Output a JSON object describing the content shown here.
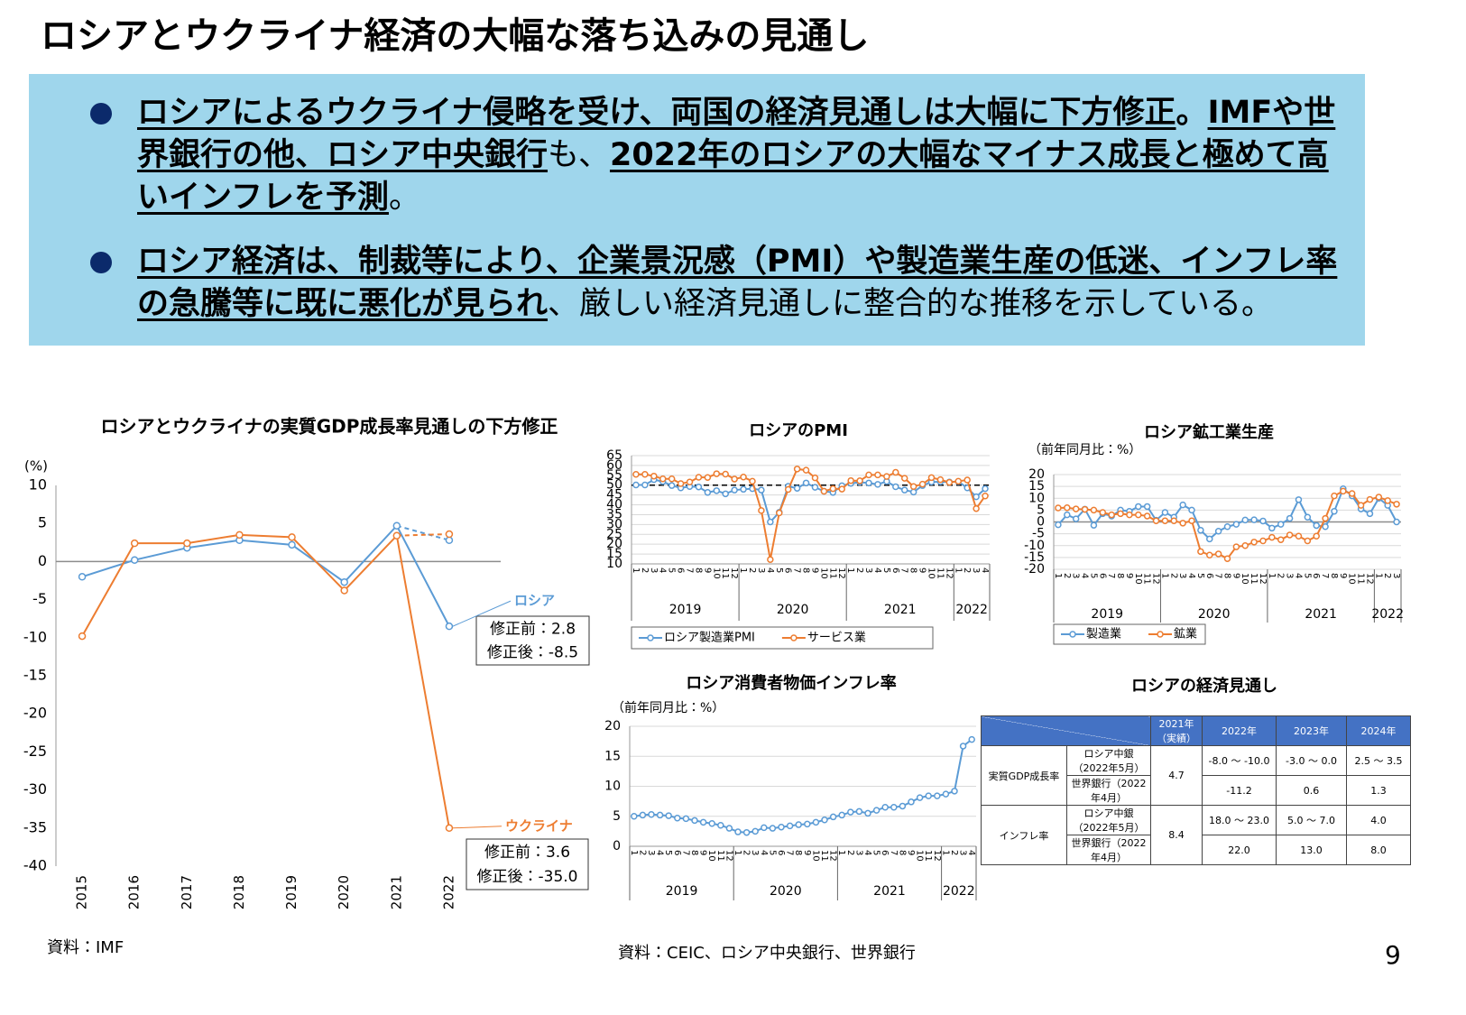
{
  "title": "ロシアとウクライナ経済の大幅な落ち込みの見通し",
  "bullets": [
    {
      "segments": [
        {
          "text": "ロシアによるウクライナ侵略を受け、両国の経済見通しは大幅に下方修正",
          "style": "underline"
        },
        {
          "text": "。",
          "style": "bold"
        },
        {
          "text": "IMFや世界銀行の他、ロシア中央銀行",
          "style": "underline"
        },
        {
          "text": "も、",
          "style": "normal"
        },
        {
          "text": "2022年のロシアの大幅なマイナス成長と極めて高いインフレを予測",
          "style": "underline"
        },
        {
          "text": "。",
          "style": "normal"
        }
      ]
    },
    {
      "segments": [
        {
          "text": "ロシア経済は、制裁等により、企業景況感（PMI）や製造業生産の低迷、インフレ率の急騰等に既に悪化が見られ",
          "style": "underline"
        },
        {
          "text": "、厳しい経済見通しに整合的な推移を示している。",
          "style": "normal"
        }
      ]
    }
  ],
  "chart_data": [
    {
      "type": "line",
      "title": "ロシアとウクライナの実質GDP成長率見通しの下方修正",
      "y_unit": "(%)",
      "categories": [
        "2015",
        "2016",
        "2017",
        "2018",
        "2019",
        "2020",
        "2021",
        "2022"
      ],
      "series": [
        {
          "name": "ロシア",
          "color": "#5b9bd5",
          "values": [
            -2.0,
            0.2,
            1.8,
            2.8,
            2.2,
            -2.7,
            4.7,
            -8.5
          ],
          "revision": {
            "before": 2.8,
            "before_label": "修正前：2.8",
            "after_label": "修正後：-8.5"
          }
        },
        {
          "name": "ウクライナ",
          "color": "#ed7d31",
          "values": [
            -9.8,
            2.4,
            2.4,
            3.5,
            3.2,
            -3.8,
            3.4,
            -35.0
          ],
          "revision": {
            "before": 3.6,
            "before_label": "修正前：3.6",
            "after_label": "修正後：-35.0"
          }
        }
      ],
      "ylim": [
        -40,
        10
      ],
      "yticks": [
        -40,
        -35,
        -30,
        -25,
        -20,
        -15,
        -10,
        -5,
        0,
        5,
        10
      ],
      "grid": false,
      "legend": "inline"
    },
    {
      "type": "line",
      "title": "ロシアのPMI",
      "categories": [
        "1",
        "2",
        "3",
        "4",
        "5",
        "6",
        "7",
        "8",
        "9",
        "10",
        "11",
        "12",
        "1",
        "2",
        "3",
        "4",
        "5",
        "6",
        "7",
        "8",
        "9",
        "10",
        "11",
        "12",
        "1",
        "2",
        "3",
        "4",
        "5",
        "6",
        "7",
        "8",
        "9",
        "10",
        "11",
        "12",
        "1",
        "2",
        "3",
        "4"
      ],
      "groups": [
        "2019",
        "2020",
        "2021",
        "2022"
      ],
      "series": [
        {
          "name": "ロシア製造業PMI",
          "color": "#5b9bd5",
          "values": [
            50.1,
            50.1,
            52.8,
            51.8,
            49.8,
            48.6,
            49.3,
            49.1,
            46.3,
            47.2,
            45.6,
            47.5,
            47.9,
            48.2,
            47.5,
            31.3,
            36.2,
            49.4,
            48.4,
            51.1,
            48.9,
            46.9,
            46.3,
            49.7,
            50.9,
            51.5,
            51.1,
            50.4,
            51.9,
            49.2,
            47.5,
            46.5,
            49.8,
            51.6,
            51.7,
            51.6,
            51.8,
            48.6,
            44.1,
            48.2
          ]
        },
        {
          "name": "サービス業",
          "color": "#ed7d31",
          "values": [
            55.5,
            55.5,
            54.6,
            53.2,
            53.2,
            50.8,
            51.6,
            54.0,
            53.9,
            55.8,
            55.6,
            53.1,
            54.1,
            52.0,
            37.1,
            12.2,
            35.9,
            47.8,
            58.2,
            57.6,
            53.7,
            46.9,
            48.2,
            48.0,
            52.3,
            52.2,
            55.2,
            55.2,
            54.4,
            56.5,
            53.5,
            49.3,
            50.5,
            53.8,
            52.8,
            51.4,
            52.0,
            52.6,
            38.1,
            44.5
          ]
        }
      ],
      "reference_line": 50,
      "ylim": [
        10,
        65
      ],
      "yticks": [
        10,
        15,
        20,
        25,
        30,
        35,
        40,
        45,
        50,
        55,
        60,
        65
      ],
      "grid": true,
      "legend": "bottom"
    },
    {
      "type": "line",
      "title": "ロシア鉱工業生産",
      "subtitle": "（前年同月比：%）",
      "categories": [
        "1",
        "2",
        "3",
        "4",
        "5",
        "6",
        "7",
        "8",
        "9",
        "10",
        "11",
        "12",
        "1",
        "2",
        "3",
        "4",
        "5",
        "6",
        "7",
        "8",
        "9",
        "10",
        "11",
        "12",
        "1",
        "2",
        "3",
        "4",
        "5",
        "6",
        "7",
        "8",
        "9",
        "10",
        "11",
        "12",
        "1",
        "2",
        "3"
      ],
      "groups": [
        "2019",
        "2020",
        "2021",
        "2022"
      ],
      "series": [
        {
          "name": "製造業",
          "color": "#5b9bd5",
          "values": [
            -1.2,
            3.0,
            1.3,
            5.4,
            -1.4,
            3.5,
            2.5,
            5.0,
            4.5,
            6.5,
            6.5,
            0.7,
            4.0,
            2.0,
            7.2,
            5.0,
            -3.5,
            -7.2,
            -3.9,
            -2.0,
            -1.0,
            0.8,
            0.9,
            0.4,
            -2.6,
            -1.0,
            1.5,
            9.4,
            2.0,
            -1.5,
            -2.0,
            4.5,
            14.0,
            11.0,
            5.5,
            3.5,
            10.0,
            7.0,
            0.0
          ]
        },
        {
          "name": "鉱業",
          "color": "#ed7d31",
          "values": [
            5.9,
            6.0,
            5.5,
            5.3,
            5.0,
            4.0,
            3.0,
            3.5,
            3.0,
            3.0,
            2.5,
            0.5,
            0.5,
            0.5,
            -0.5,
            0.5,
            -12.5,
            -14.0,
            -13.5,
            -15.5,
            -10.5,
            -10.0,
            -8.5,
            -8.0,
            -6.5,
            -7.5,
            -5.5,
            -6.0,
            -8.0,
            -6.0,
            1.5,
            11.0,
            13.0,
            12.0,
            7.0,
            9.5,
            10.5,
            9.0,
            7.5
          ]
        }
      ],
      "ylim": [
        -20,
        20
      ],
      "yticks": [
        -20,
        -15,
        -10,
        -5,
        0,
        5,
        10,
        15,
        20
      ],
      "grid": true,
      "legend": "bottom"
    },
    {
      "type": "line",
      "title": "ロシア消費者物価インフレ率",
      "subtitle": "（前年同月比：%）",
      "categories": [
        "1",
        "2",
        "3",
        "4",
        "5",
        "6",
        "7",
        "8",
        "9",
        "10",
        "11",
        "12",
        "1",
        "2",
        "3",
        "4",
        "5",
        "6",
        "7",
        "8",
        "9",
        "10",
        "11",
        "12",
        "1",
        "2",
        "3",
        "4",
        "5",
        "6",
        "7",
        "8",
        "9",
        "10",
        "11",
        "12",
        "1",
        "2",
        "3",
        "4"
      ],
      "groups": [
        "2019",
        "2020",
        "2021",
        "2022"
      ],
      "color": "#5b9bd5",
      "values": [
        5.0,
        5.2,
        5.3,
        5.2,
        5.1,
        4.7,
        4.6,
        4.3,
        4.0,
        3.8,
        3.5,
        3.0,
        2.4,
        2.3,
        2.5,
        3.1,
        3.0,
        3.2,
        3.4,
        3.6,
        3.7,
        4.0,
        4.4,
        4.9,
        5.2,
        5.7,
        5.8,
        5.5,
        6.0,
        6.5,
        6.5,
        6.7,
        7.4,
        8.1,
        8.4,
        8.4,
        8.7,
        9.2,
        16.7,
        17.8
      ],
      "ylim": [
        0,
        20
      ],
      "yticks": [
        0,
        5,
        10,
        15,
        20
      ],
      "grid": true
    }
  ],
  "table": {
    "title": "ロシアの経済見通し",
    "header": [
      "2021年（実績）",
      "2022年",
      "2023年",
      "2024年"
    ],
    "rows": [
      {
        "indicator": "実質GDP成長率",
        "actual": "4.7",
        "sources": [
          {
            "name": "ロシア中銀（2022年5月）",
            "values": [
              "-8.0 ～ -10.0",
              "-3.0 ～ 0.0",
              "2.5 ～ 3.5"
            ]
          },
          {
            "name": "世界銀行（2022年4月）",
            "values": [
              "-11.2",
              "0.6",
              "1.3"
            ]
          }
        ]
      },
      {
        "indicator": "インフレ率",
        "actual": "8.4",
        "sources": [
          {
            "name": "ロシア中銀（2022年5月）",
            "values": [
              "18.0 ～ 23.0",
              "5.0 ～ 7.0",
              "4.0"
            ]
          },
          {
            "name": "世界銀行（2022年4月）",
            "values": [
              "22.0",
              "13.0",
              "8.0"
            ]
          }
        ]
      }
    ]
  },
  "sources": [
    "資料：IMF",
    "資料：CEIC、ロシア中央銀行、世界銀行"
  ],
  "page_number": "9"
}
